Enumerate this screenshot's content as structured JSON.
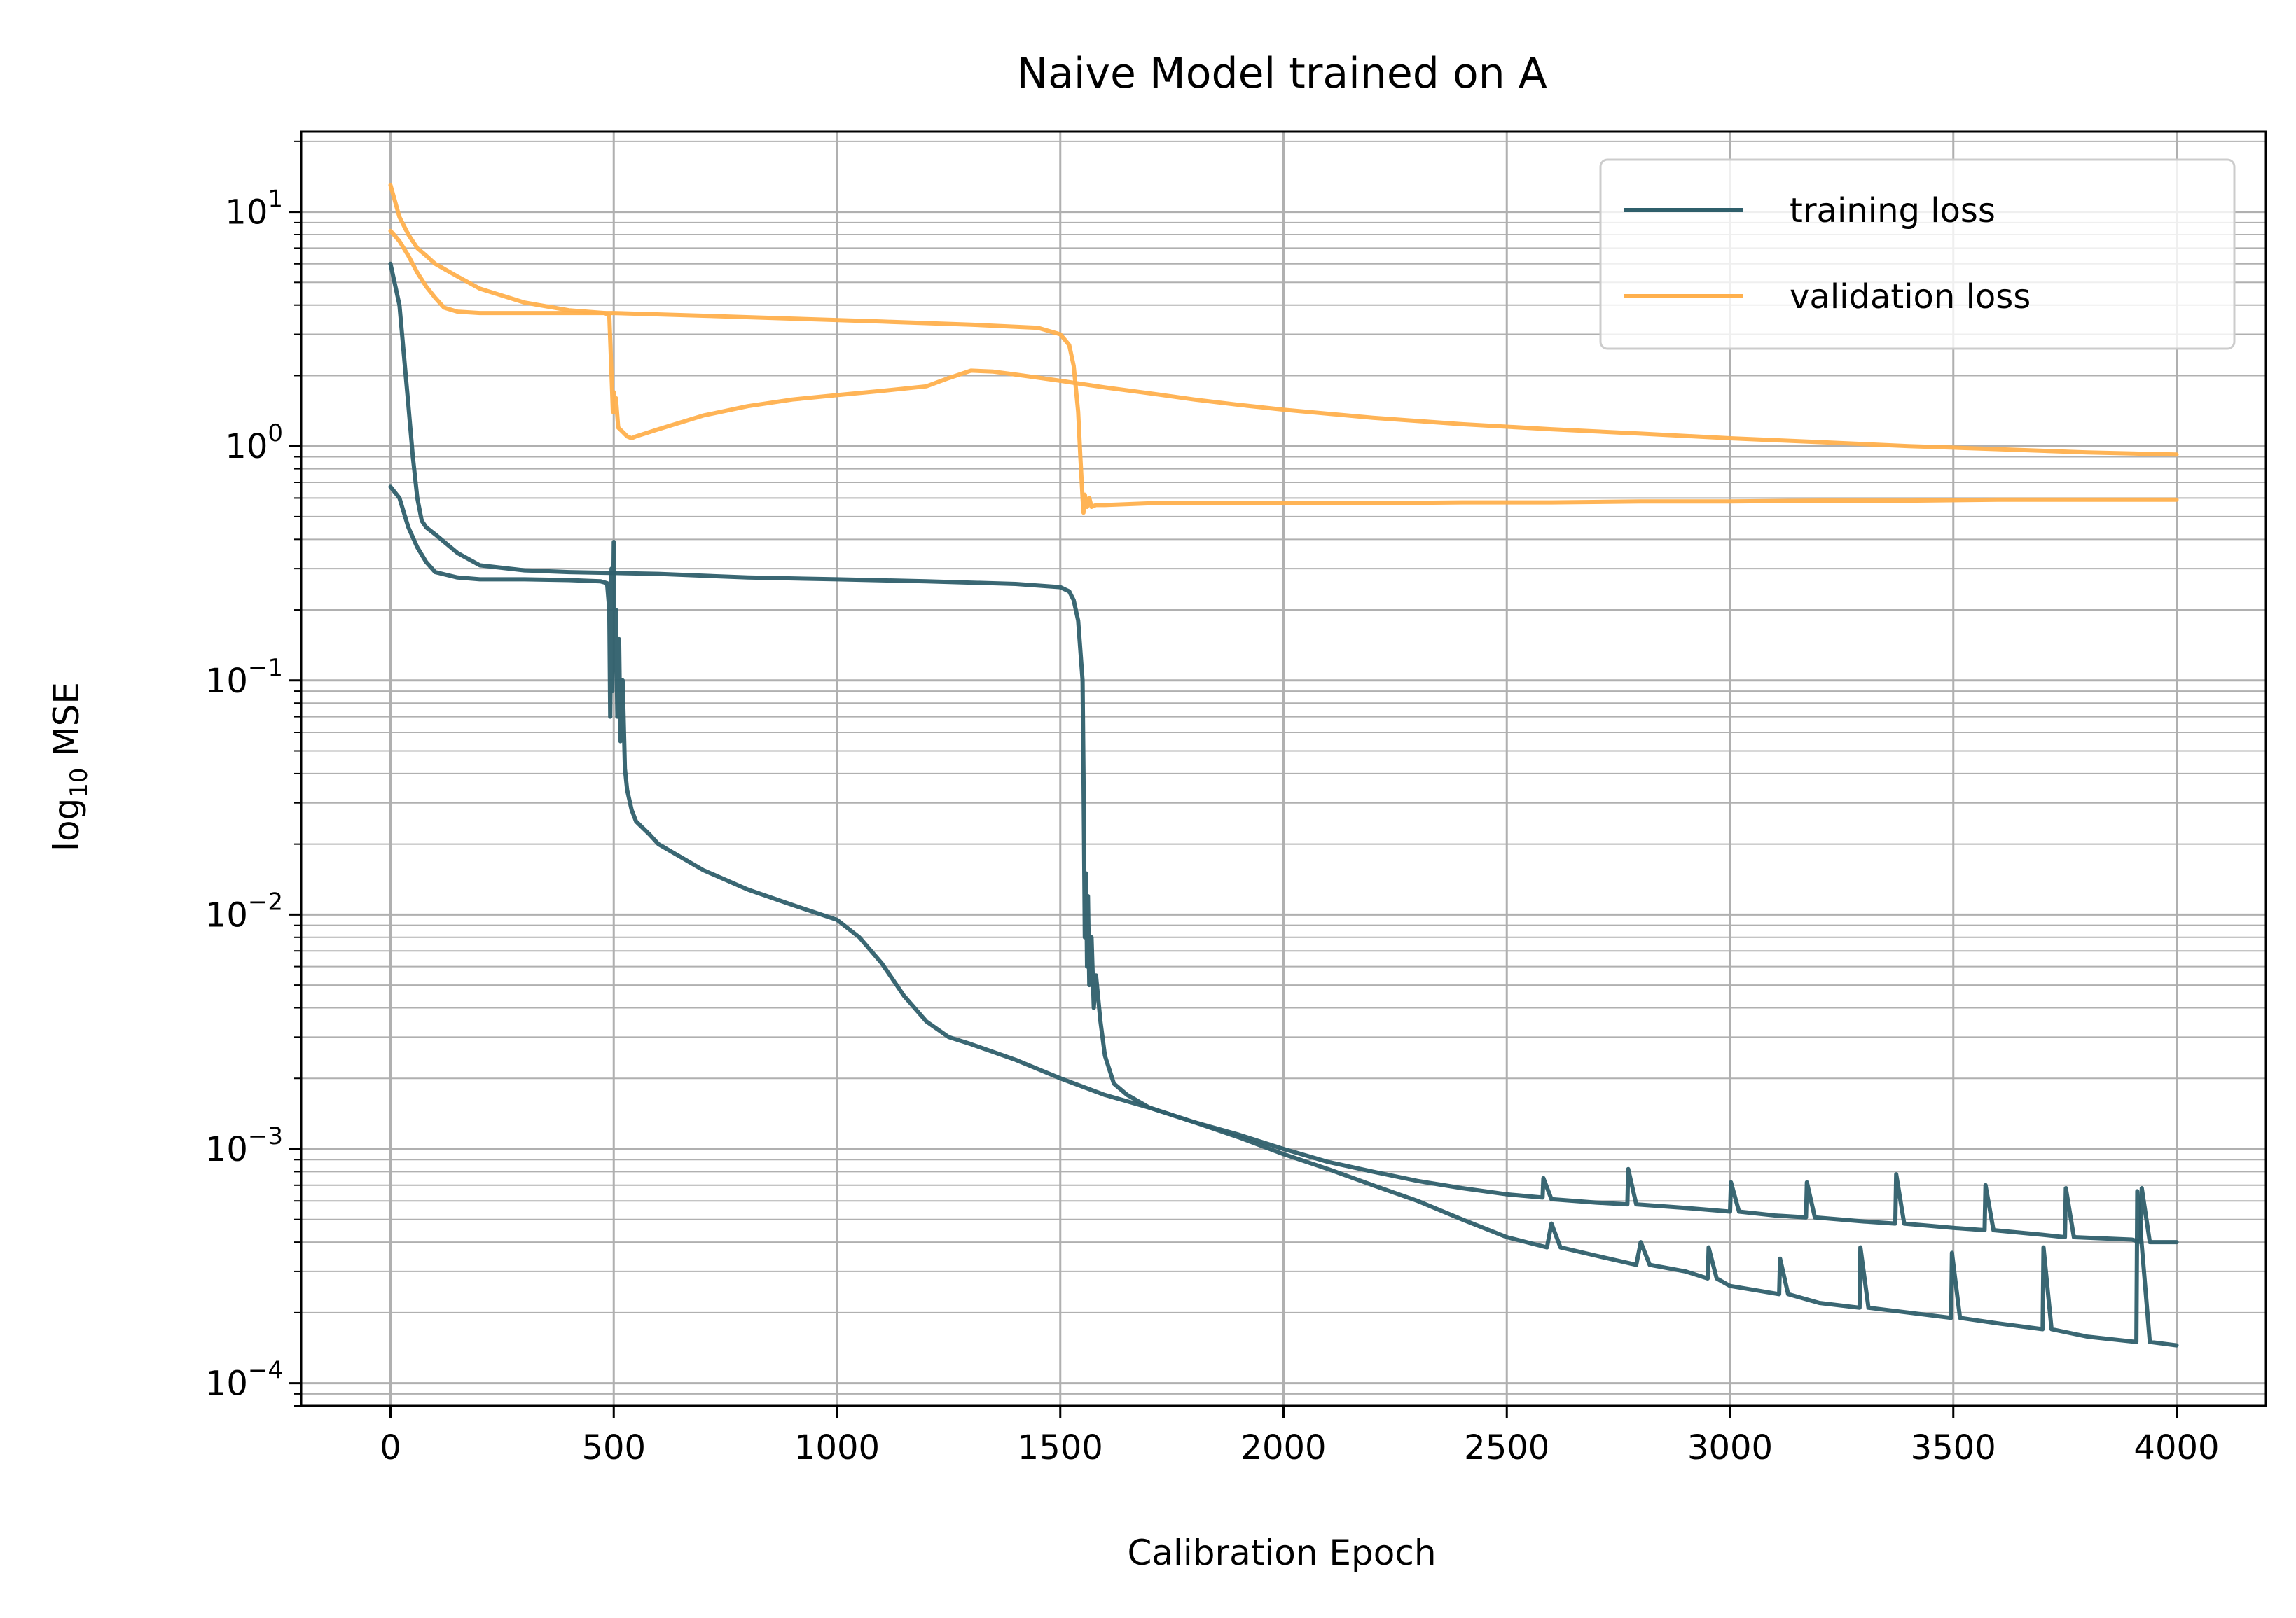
{
  "chart_data": {
    "type": "line",
    "title": "Naive Model trained on A",
    "xlabel": "Calibration Epoch",
    "ylabel": {
      "prefix": "log",
      "sub": "10",
      "suffix": " MSE"
    },
    "xlim": [
      -200,
      4200
    ],
    "ylim": [
      8e-05,
      22
    ],
    "yscale": "log",
    "grid": true,
    "legend_position": "top-right",
    "x_ticks": [
      0,
      500,
      1000,
      1500,
      2000,
      2500,
      3000,
      3500,
      4000
    ],
    "x_tick_labels": [
      "0",
      "500",
      "1000",
      "1500",
      "2000",
      "2500",
      "3000",
      "3500",
      "4000"
    ],
    "y_ticks": [
      0.0001,
      0.001,
      0.01,
      0.1,
      1,
      10
    ],
    "y_tick_labels": [
      {
        "base": "10",
        "exp": "−4"
      },
      {
        "base": "10",
        "exp": "−3"
      },
      {
        "base": "10",
        "exp": "−2"
      },
      {
        "base": "10",
        "exp": "−1"
      },
      {
        "base": "10",
        "exp": "0"
      },
      {
        "base": "10",
        "exp": "1"
      }
    ],
    "legend": [
      {
        "label": "training loss",
        "color": "#2f5f6b"
      },
      {
        "label": "validation loss",
        "color": "#ffb04d"
      }
    ],
    "series": [
      {
        "name": "training loss",
        "color": "#2f5f6b",
        "x": [
          0,
          20,
          40,
          60,
          80,
          100,
          150,
          200,
          300,
          400,
          470,
          485,
          490,
          492,
          495,
          497,
          500,
          502,
          505,
          508,
          512,
          515,
          520,
          525,
          530,
          540,
          550,
          580,
          600,
          700,
          800,
          900,
          1000,
          1050,
          1100,
          1150,
          1200,
          1250,
          1300,
          1400,
          1500,
          1600,
          1700,
          1800,
          1900,
          2000,
          2100,
          2200,
          2300,
          2400,
          2500,
          2590,
          2600,
          2620,
          2700,
          2790,
          2800,
          2820,
          2900,
          2950,
          2952,
          2970,
          3000,
          3110,
          3112,
          3130,
          3200,
          3290,
          3292,
          3310,
          3400,
          3495,
          3497,
          3515,
          3600,
          3700,
          3702,
          3720,
          3800,
          3910,
          3912,
          3940,
          4000
        ],
        "y": [
          0.67,
          0.6,
          0.45,
          0.37,
          0.32,
          0.29,
          0.275,
          0.27,
          0.27,
          0.268,
          0.265,
          0.26,
          0.2,
          0.07,
          0.3,
          0.09,
          0.39,
          0.12,
          0.2,
          0.07,
          0.15,
          0.055,
          0.1,
          0.042,
          0.034,
          0.028,
          0.025,
          0.022,
          0.02,
          0.0155,
          0.0128,
          0.011,
          0.0095,
          0.008,
          0.0062,
          0.0045,
          0.0035,
          0.003,
          0.0028,
          0.0024,
          0.002,
          0.0017,
          0.0015,
          0.0013,
          0.00112,
          0.00095,
          0.00082,
          0.0007,
          0.0006,
          0.0005,
          0.00042,
          0.00038,
          0.00048,
          0.00038,
          0.00035,
          0.00032,
          0.0004,
          0.00032,
          0.0003,
          0.00028,
          0.00038,
          0.00028,
          0.00026,
          0.00024,
          0.00034,
          0.00024,
          0.00022,
          0.00021,
          0.00038,
          0.00021,
          0.0002,
          0.00019,
          0.00036,
          0.00019,
          0.00018,
          0.00017,
          0.00038,
          0.00017,
          0.000158,
          0.00015,
          0.00066,
          0.00015,
          0.000145
        ]
      },
      {
        "name": "training loss",
        "color": "#2f5f6b",
        "x": [
          0,
          20,
          40,
          50,
          60,
          70,
          80,
          100,
          150,
          200,
          300,
          400,
          600,
          800,
          1000,
          1200,
          1400,
          1500,
          1520,
          1530,
          1540,
          1550,
          1552,
          1555,
          1558,
          1560,
          1562,
          1565,
          1570,
          1575,
          1580,
          1590,
          1600,
          1620,
          1650,
          1700,
          1800,
          1900,
          2000,
          2100,
          2200,
          2300,
          2400,
          2500,
          2580,
          2582,
          2600,
          2700,
          2770,
          2772,
          2790,
          2900,
          3000,
          3002,
          3020,
          3100,
          3170,
          3172,
          3190,
          3300,
          3370,
          3372,
          3390,
          3500,
          3570,
          3572,
          3590,
          3700,
          3750,
          3752,
          3770,
          3900,
          3920,
          3922,
          3940,
          4000
        ],
        "y": [
          6.0,
          4.0,
          1.5,
          0.9,
          0.6,
          0.48,
          0.45,
          0.42,
          0.35,
          0.31,
          0.295,
          0.29,
          0.285,
          0.275,
          0.27,
          0.265,
          0.258,
          0.25,
          0.24,
          0.22,
          0.18,
          0.1,
          0.04,
          0.008,
          0.015,
          0.006,
          0.012,
          0.005,
          0.008,
          0.004,
          0.0055,
          0.0035,
          0.0025,
          0.0019,
          0.0017,
          0.0015,
          0.0013,
          0.00115,
          0.001,
          0.00088,
          0.0008,
          0.00073,
          0.00068,
          0.00064,
          0.00062,
          0.00075,
          0.00061,
          0.00059,
          0.00058,
          0.00082,
          0.00058,
          0.00056,
          0.00054,
          0.00072,
          0.00054,
          0.00052,
          0.00051,
          0.00072,
          0.00051,
          0.00049,
          0.00048,
          0.00078,
          0.00048,
          0.00046,
          0.00045,
          0.0007,
          0.00045,
          0.00043,
          0.00042,
          0.00068,
          0.00042,
          0.00041,
          0.0004,
          0.00068,
          0.0004,
          0.0004
        ]
      },
      {
        "name": "validation loss",
        "color": "#ffb04d",
        "x": [
          0,
          20,
          40,
          60,
          80,
          100,
          150,
          200,
          300,
          400,
          480,
          490,
          495,
          498,
          500,
          502,
          505,
          510,
          520,
          530,
          540,
          550,
          600,
          700,
          800,
          900,
          1000,
          1100,
          1200,
          1250,
          1300,
          1350,
          1400,
          1500,
          1600,
          1700,
          1800,
          1900,
          2000,
          2200,
          2400,
          2600,
          2800,
          3000,
          3200,
          3400,
          3600,
          3800,
          4000
        ],
        "y": [
          13.0,
          9.5,
          8.0,
          7.0,
          6.5,
          6.0,
          5.3,
          4.7,
          4.1,
          3.8,
          3.7,
          3.6,
          2.0,
          1.4,
          1.7,
          1.4,
          1.6,
          1.2,
          1.15,
          1.1,
          1.08,
          1.1,
          1.18,
          1.35,
          1.48,
          1.58,
          1.65,
          1.72,
          1.8,
          1.95,
          2.1,
          2.08,
          2.02,
          1.9,
          1.78,
          1.68,
          1.58,
          1.5,
          1.43,
          1.32,
          1.24,
          1.18,
          1.13,
          1.08,
          1.04,
          1.0,
          0.97,
          0.94,
          0.92
        ]
      },
      {
        "name": "validation loss",
        "color": "#ffb04d",
        "x": [
          0,
          20,
          40,
          60,
          80,
          100,
          120,
          150,
          200,
          300,
          400,
          500,
          700,
          900,
          1100,
          1300,
          1450,
          1500,
          1520,
          1530,
          1540,
          1545,
          1550,
          1552,
          1555,
          1560,
          1565,
          1570,
          1580,
          1600,
          1700,
          1800,
          2000,
          2200,
          2400,
          2600,
          2800,
          3000,
          3200,
          3400,
          3600,
          3800,
          4000
        ],
        "y": [
          8.3,
          7.5,
          6.5,
          5.5,
          4.8,
          4.3,
          3.9,
          3.75,
          3.7,
          3.7,
          3.7,
          3.7,
          3.6,
          3.5,
          3.4,
          3.3,
          3.2,
          3.0,
          2.7,
          2.2,
          1.4,
          0.9,
          0.6,
          0.52,
          0.62,
          0.55,
          0.6,
          0.55,
          0.56,
          0.56,
          0.57,
          0.57,
          0.57,
          0.57,
          0.575,
          0.575,
          0.58,
          0.58,
          0.585,
          0.585,
          0.59,
          0.59,
          0.59
        ]
      }
    ]
  }
}
